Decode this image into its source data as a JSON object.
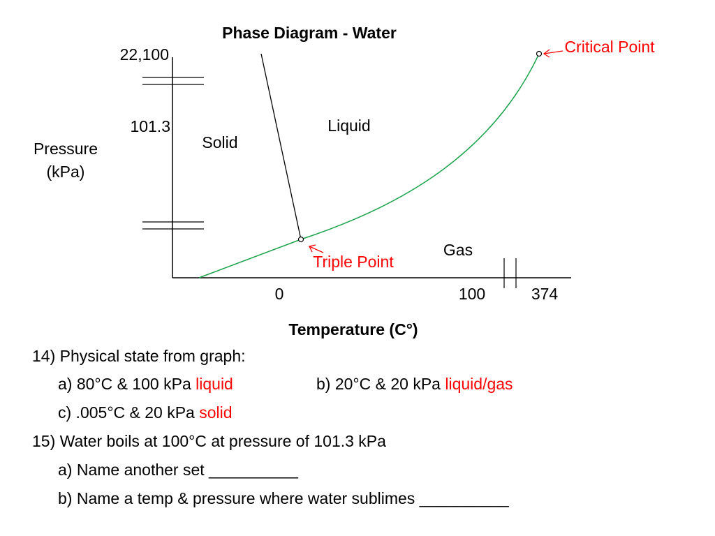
{
  "diagram": {
    "title": "Phase Diagram - Water",
    "y_axis": {
      "title_line1": "Pressure",
      "title_line2": "(kPa)",
      "ticks": [
        "22,100",
        "101.3"
      ]
    },
    "x_axis": {
      "title": "Temperature (C°)",
      "ticks": [
        "0",
        "100",
        "374"
      ]
    },
    "regions": {
      "solid": "Solid",
      "liquid": "Liquid",
      "gas": "Gas"
    },
    "points": {
      "triple": "Triple Point",
      "critical": "Critical Point"
    },
    "colors": {
      "curve": "#1aa34a",
      "annotation": "#ff0000",
      "line": "#000000"
    }
  },
  "questions": {
    "q14": {
      "prompt": "14) Physical state from graph:",
      "a_text": "a) 80°C & 100 kPa",
      "a_answer": "liquid",
      "b_text": "b) 20°C & 20 kPa",
      "b_answer": "liquid/gas",
      "c_text": "c) .005°C & 20 kPa",
      "c_answer": "solid"
    },
    "q15": {
      "prompt": "15) Water boils at 100°C at pressure of 101.3 kPa",
      "a_text": "a) Name another set __________",
      "b_text": "b) Name a temp & pressure where water sublimes __________"
    }
  }
}
